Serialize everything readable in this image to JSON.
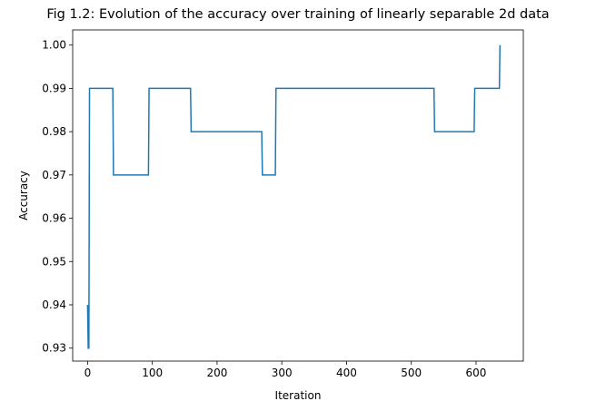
{
  "chart_data": {
    "type": "line",
    "title": "Fig 1.2: Evolution of the accuracy over training of linearly separable 2d data",
    "xlabel": "Iteration",
    "ylabel": "Accuracy",
    "xlim": [
      -23,
      673
    ],
    "ylim": [
      0.927,
      1.0035
    ],
    "xticks": [
      0,
      100,
      200,
      300,
      400,
      500,
      600
    ],
    "xtick_labels": [
      "0",
      "100",
      "200",
      "300",
      "400",
      "500",
      "600"
    ],
    "yticks": [
      0.93,
      0.94,
      0.95,
      0.96,
      0.97,
      0.98,
      0.99,
      1.0
    ],
    "ytick_labels": [
      "0.93",
      "0.94",
      "0.95",
      "0.96",
      "0.97",
      "0.98",
      "0.99",
      "1.00"
    ],
    "grid": false,
    "line_color": "#1f77b4",
    "series": [
      {
        "x": [
          0,
          1,
          2,
          3,
          4,
          39,
          40,
          94,
          95,
          159,
          160,
          269,
          270,
          290,
          291,
          535,
          536,
          597,
          598,
          636,
          637
        ],
        "y": [
          0.94,
          0.93,
          0.93,
          0.99,
          0.99,
          0.99,
          0.97,
          0.97,
          0.99,
          0.99,
          0.98,
          0.98,
          0.97,
          0.97,
          0.99,
          0.99,
          0.98,
          0.98,
          0.99,
          0.99,
          1.0
        ]
      }
    ]
  }
}
